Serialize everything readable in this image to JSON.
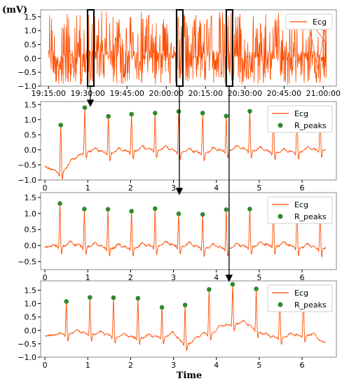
{
  "figure": {
    "ylabel": "(mV)",
    "xlabel": "Time"
  },
  "colors": {
    "ecg": "#ff4d00",
    "rpeak": "#2e8b2e",
    "frame": "#888888",
    "callout": "#000000"
  },
  "chart_data": [
    {
      "type": "line",
      "panel": "overview",
      "series": [
        {
          "name": "Ecg"
        }
      ],
      "x_tick_labels": [
        "19:15:00",
        "19:30:00",
        "19:45:00",
        "20:00:00",
        "20:15:00",
        "20:30:00",
        "20:45:00",
        "21:00:00"
      ],
      "xlim_minutes": [
        -3,
        110
      ],
      "ylim": [
        -1.0,
        1.75
      ],
      "y_ticks": [
        -1.0,
        -0.5,
        0.0,
        0.5,
        1.0,
        1.5
      ],
      "y_tick_labels": [
        "−1.0",
        "−0.5",
        "0.0",
        "0.5",
        "1.0",
        "1.5"
      ],
      "legend": "top-right",
      "highlight_windows_minutes": [
        16,
        50,
        69
      ]
    },
    {
      "type": "line",
      "panel": "segment-1",
      "series": [
        {
          "name": "Ecg"
        },
        {
          "name": "R_peaks"
        }
      ],
      "xlim": [
        -0.1,
        6.8
      ],
      "ylim": [
        -1.0,
        1.6
      ],
      "x_ticks": [
        0,
        1,
        2,
        3,
        4,
        5,
        6
      ],
      "x_tick_labels": [
        "0",
        "1",
        "2",
        "3",
        "4",
        "5",
        "6"
      ],
      "y_ticks": [
        -1.0,
        -0.5,
        0.0,
        0.5,
        1.0,
        1.5
      ],
      "y_tick_labels": [
        "−1.0",
        "−0.5",
        "0.0",
        "0.5",
        "1.0",
        "1.5"
      ],
      "legend": "top-right",
      "r_peaks": [
        {
          "x": 0.37,
          "y": 0.82
        },
        {
          "x": 0.93,
          "y": 1.4
        },
        {
          "x": 1.48,
          "y": 1.11
        },
        {
          "x": 2.02,
          "y": 1.18
        },
        {
          "x": 2.57,
          "y": 1.22
        },
        {
          "x": 3.12,
          "y": 1.27
        },
        {
          "x": 3.68,
          "y": 1.22
        },
        {
          "x": 4.23,
          "y": 1.12
        },
        {
          "x": 4.78,
          "y": 1.28
        },
        {
          "x": 5.33,
          "y": 1.32
        },
        {
          "x": 5.88,
          "y": 1.3
        },
        {
          "x": 6.42,
          "y": 1.3
        }
      ]
    },
    {
      "type": "line",
      "panel": "segment-2",
      "series": [
        {
          "name": "Ecg"
        },
        {
          "name": "R_peaks"
        }
      ],
      "xlim": [
        -0.1,
        6.8
      ],
      "ylim": [
        -0.75,
        1.65
      ],
      "x_ticks": [
        0,
        1,
        2,
        3,
        4,
        5,
        6
      ],
      "x_tick_labels": [
        "0",
        "1",
        "2",
        "3",
        "4",
        "5",
        "6"
      ],
      "y_ticks": [
        -0.5,
        0.0,
        0.5,
        1.0,
        1.5
      ],
      "y_tick_labels": [
        "−0.5",
        "0.0",
        "0.5",
        "1.0",
        "1.5"
      ],
      "legend": "top-right",
      "r_peaks": [
        {
          "x": 0.35,
          "y": 1.31
        },
        {
          "x": 0.92,
          "y": 1.14
        },
        {
          "x": 1.47,
          "y": 1.13
        },
        {
          "x": 2.02,
          "y": 1.07
        },
        {
          "x": 2.57,
          "y": 1.15
        },
        {
          "x": 3.12,
          "y": 0.99
        },
        {
          "x": 3.68,
          "y": 0.97
        },
        {
          "x": 4.23,
          "y": 1.12
        },
        {
          "x": 4.78,
          "y": 1.14
        },
        {
          "x": 5.33,
          "y": 1.23
        },
        {
          "x": 5.88,
          "y": 1.2
        },
        {
          "x": 6.42,
          "y": 1.2
        }
      ]
    },
    {
      "type": "line",
      "panel": "segment-3",
      "series": [
        {
          "name": "Ecg"
        },
        {
          "name": "R_peaks"
        }
      ],
      "xlim": [
        -0.1,
        6.8
      ],
      "ylim": [
        -1.0,
        1.85
      ],
      "x_ticks": [
        0,
        1,
        2,
        3,
        4,
        5,
        6
      ],
      "x_tick_labels": [
        "0",
        "1",
        "2",
        "3",
        "4",
        "5",
        "6"
      ],
      "y_ticks": [
        -1.0,
        -0.5,
        0.0,
        0.5,
        1.0,
        1.5
      ],
      "y_tick_labels": [
        "−1.0",
        "−0.5",
        "0.0",
        "0.5",
        "1.0",
        "1.5"
      ],
      "legend": "top-right",
      "r_peaks": [
        {
          "x": 0.5,
          "y": 1.08
        },
        {
          "x": 1.05,
          "y": 1.23
        },
        {
          "x": 1.6,
          "y": 1.22
        },
        {
          "x": 2.17,
          "y": 1.2
        },
        {
          "x": 2.73,
          "y": 0.86
        },
        {
          "x": 3.27,
          "y": 0.95
        },
        {
          "x": 3.83,
          "y": 1.53
        },
        {
          "x": 4.38,
          "y": 1.72
        },
        {
          "x": 4.93,
          "y": 1.55
        },
        {
          "x": 5.48,
          "y": 1.52
        },
        {
          "x": 6.03,
          "y": 1.45
        }
      ]
    }
  ]
}
